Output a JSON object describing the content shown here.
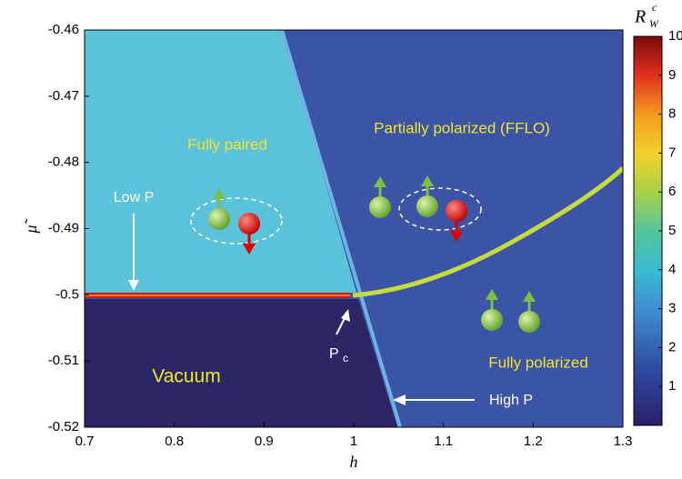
{
  "chart_data": {
    "type": "heatmap",
    "xlabel": "h",
    "ylabel": "μ̃",
    "xlim": [
      0.7,
      1.3
    ],
    "xticks": [
      0.7,
      0.8,
      0.9,
      1,
      1.1,
      1.2,
      1.3
    ],
    "ylim": [
      -0.52,
      -0.46
    ],
    "yticks": [
      -0.52,
      -0.51,
      -0.5,
      -0.49,
      -0.48,
      -0.47,
      -0.46
    ],
    "colorbar": {
      "label": "R",
      "label_sub": "W",
      "label_sup": "c",
      "clim": [
        0,
        10
      ],
      "ticks": [
        1,
        2,
        3,
        4,
        5,
        6,
        7,
        8,
        9,
        10
      ]
    },
    "annotations": {
      "fully_paired": "Fully paired",
      "ffl": "Partially polarized (FFLO)",
      "low_p": "Low P",
      "pc": "P",
      "pc_sub": "c",
      "vacuum": "Vacuum",
      "fully_polarized": "Fully polarized",
      "high_p": "High P"
    }
  }
}
